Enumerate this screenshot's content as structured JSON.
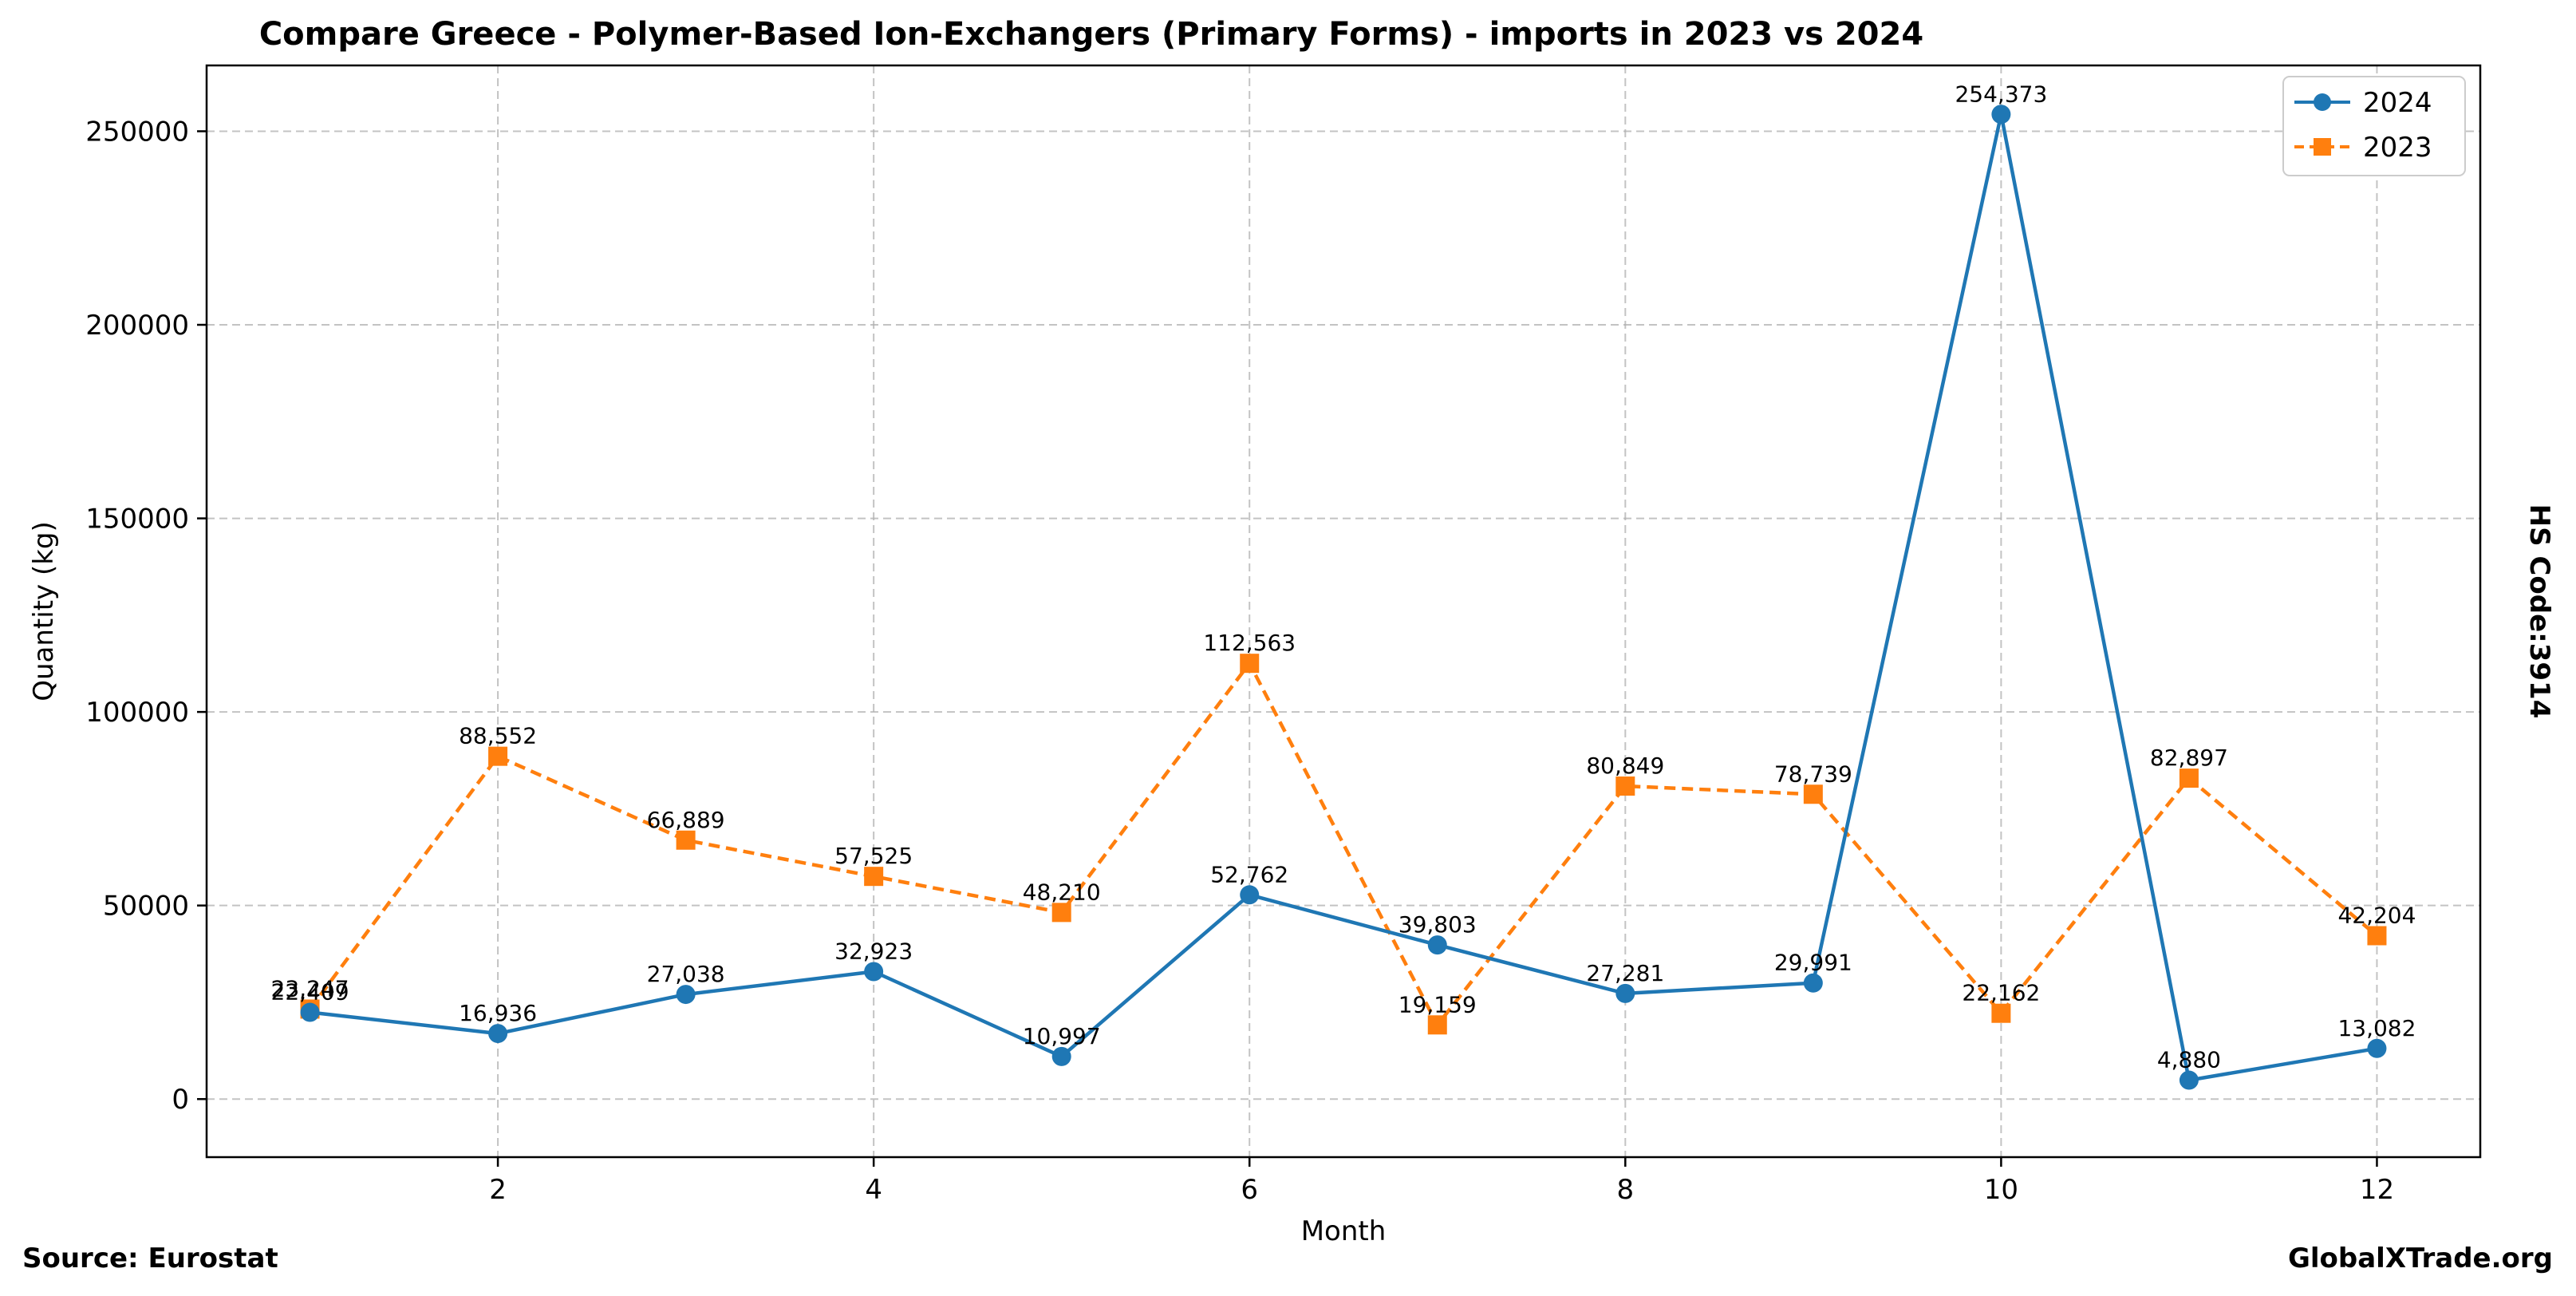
{
  "chart_data": {
    "type": "line",
    "title": "Compare Greece - Polymer-Based Ion-Exchangers (Primary Forms) - imports in 2023 vs 2024",
    "xlabel": "Month",
    "ylabel": "Quantity (kg)",
    "x": [
      1,
      2,
      3,
      4,
      5,
      6,
      7,
      8,
      9,
      10,
      11,
      12
    ],
    "xlim": [
      0.45,
      12.55
    ],
    "ylim": [
      -15000,
      267000
    ],
    "xticks": [
      "2",
      "4",
      "6",
      "8",
      "10",
      "12"
    ],
    "yticks": [
      "0",
      "50000",
      "100000",
      "150000",
      "200000",
      "250000"
    ],
    "grid": true,
    "legend_position": "top-right",
    "series": [
      {
        "name": "2024",
        "color": "#1f77b4",
        "marker": "circle",
        "line_style": "solid",
        "values": [
          22409,
          16936,
          27038,
          32923,
          10997,
          52762,
          39803,
          27281,
          29991,
          254373,
          4880,
          13082
        ],
        "labels": [
          "22,409",
          "16,936",
          "27,038",
          "32,923",
          "10,997",
          "52,762",
          "39,803",
          "27,281",
          "29,991",
          "254,373",
          "4,880",
          "13,082"
        ]
      },
      {
        "name": "2023",
        "color": "#ff7f0e",
        "marker": "square",
        "line_style": "dashed",
        "values": [
          23247,
          88552,
          66889,
          57525,
          48210,
          112563,
          19159,
          80849,
          78739,
          22162,
          82897,
          42204
        ],
        "labels": [
          "23,247",
          "88,552",
          "66,889",
          "57,525",
          "48,210",
          "112,563",
          "19,159",
          "80,849",
          "78,739",
          "22,162",
          "82,897",
          "42,204"
        ]
      }
    ]
  },
  "side_label": "HS Code:3914",
  "footer": {
    "source": "Source: Eurostat",
    "brand": "GlobalXTrade.org"
  }
}
